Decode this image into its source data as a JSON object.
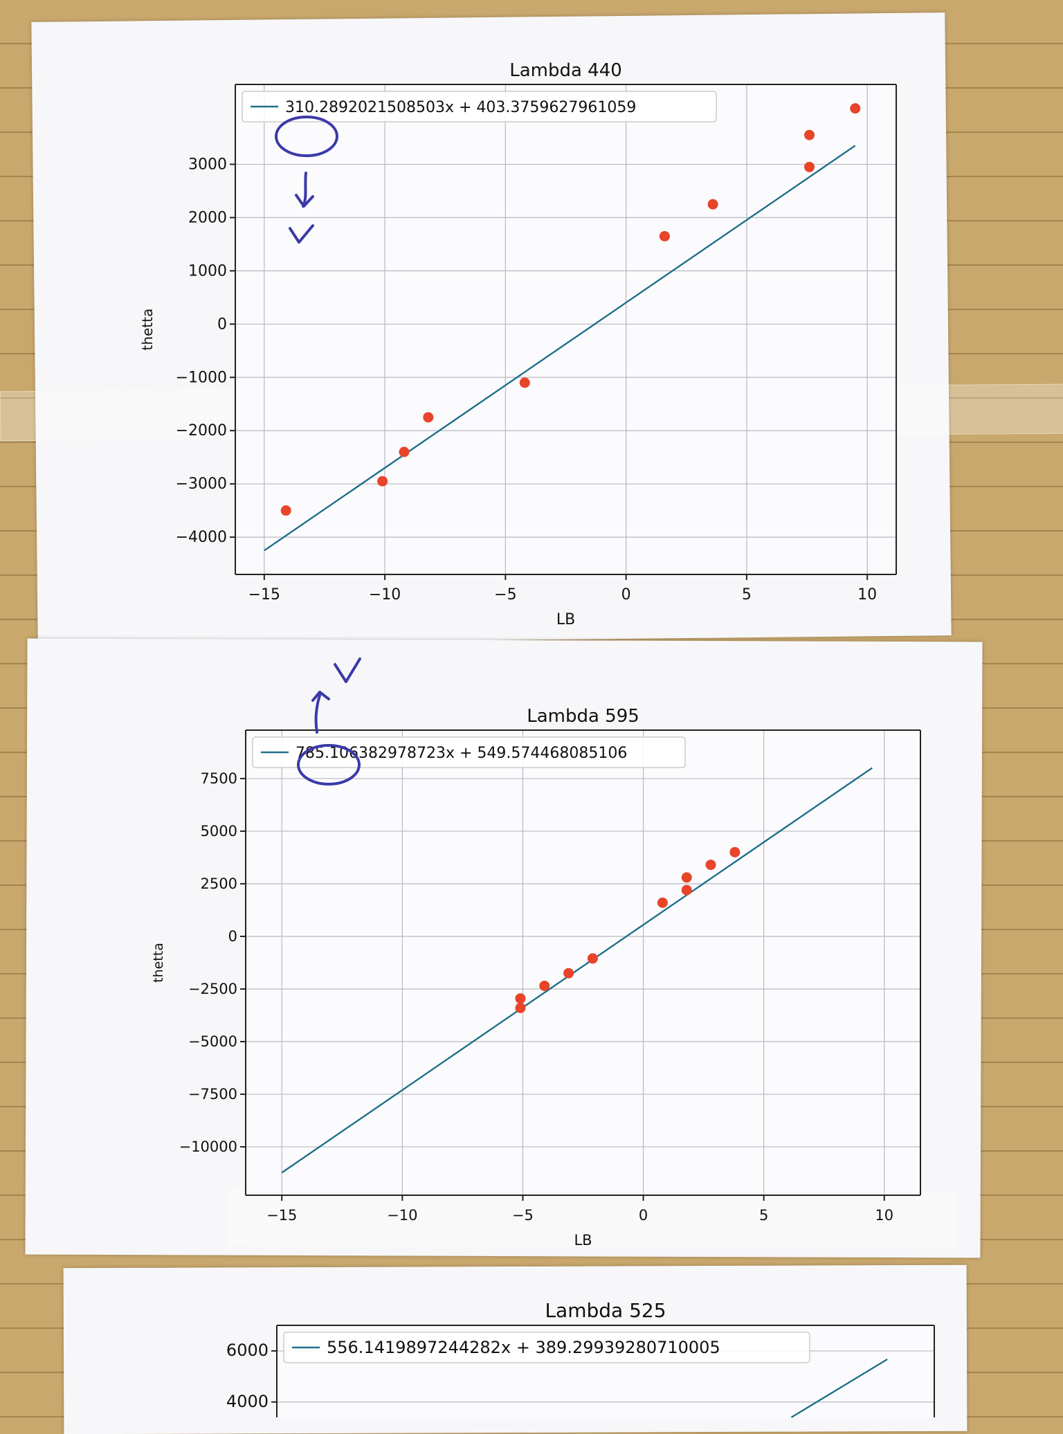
{
  "chart_data": [
    {
      "type": "scatter",
      "title": "Lambda 440",
      "xlabel": "LB",
      "ylabel": "thetta",
      "xlim": [
        -16.2,
        11.2
      ],
      "ylim": [
        -4700,
        4500
      ],
      "xticks": [
        -15,
        -10,
        -5,
        0,
        5,
        10
      ],
      "xtick_labels": [
        "−15",
        "−10",
        "−5",
        "0",
        "5",
        "10"
      ],
      "yticks": [
        -4000,
        -3000,
        -2000,
        -1000,
        0,
        1000,
        2000,
        3000
      ],
      "ytick_labels": [
        "−4000",
        "−3000",
        "−2000",
        "−1000",
        "0",
        "1000",
        "2000",
        "3000"
      ],
      "grid": true,
      "legend_position": "top-left",
      "fit": {
        "slope": 310.2892021508503,
        "intercept": 403.3759627961059,
        "x_range": [
          -15,
          9.5
        ]
      },
      "legend_label": "310.2892021508503x + 403.3759627961059",
      "points": {
        "x": [
          -14.1,
          -10.1,
          -9.2,
          -8.2,
          -4.2,
          1.6,
          3.6,
          7.6,
          7.6,
          9.5
        ],
        "y": [
          -3500,
          -2950,
          -2400,
          -1750,
          -1100,
          1650,
          2250,
          2950,
          3550,
          4050
        ]
      },
      "line_color": "#1f6f8b",
      "point_color": "#e8442a"
    },
    {
      "type": "scatter",
      "title": "Lambda 595",
      "xlabel": "LB",
      "ylabel": "thetta",
      "xlim": [
        -16.5,
        11.5
      ],
      "ylim": [
        -12300,
        9800
      ],
      "xticks": [
        -15,
        -10,
        -5,
        0,
        5,
        10
      ],
      "xtick_labels": [
        "−15",
        "−10",
        "−5",
        "0",
        "5",
        "10"
      ],
      "yticks": [
        -10000,
        -7500,
        -5000,
        -2500,
        0,
        2500,
        5000,
        7500
      ],
      "ytick_labels": [
        "−10000",
        "−7500",
        "−5000",
        "−2500",
        "0",
        "2500",
        "5000",
        "7500"
      ],
      "grid": true,
      "legend_position": "top-left",
      "fit": {
        "slope": 785.106382978723,
        "intercept": 549.574468085106,
        "x_range": [
          -15,
          9.5
        ]
      },
      "legend_label": "785.106382978723x + 549.574468085106",
      "points": {
        "x": [
          -5.1,
          -5.1,
          -4.1,
          -3.1,
          -2.1,
          0.8,
          1.8,
          1.8,
          2.8,
          3.8
        ],
        "y": [
          -3400,
          -2950,
          -2350,
          -1750,
          -1050,
          1600,
          2200,
          2800,
          3400,
          4000
        ]
      },
      "line_color": "#1f6f8b",
      "point_color": "#e8442a"
    },
    {
      "type": "line",
      "title": "Lambda 525",
      "xlabel": "",
      "ylabel": "",
      "xlim": [
        -16.5,
        11.5
      ],
      "ylim": [
        -6000,
        7000
      ],
      "yticks": [
        4000,
        6000
      ],
      "ytick_labels": [
        "4000",
        "6000"
      ],
      "grid": true,
      "legend_position": "top-left",
      "fit": {
        "slope": 556.1419897244282,
        "intercept": 389.29939280710005,
        "x_range": [
          -15,
          9.5
        ]
      },
      "legend_label": "556.1419897244282x + 389.29939280710005",
      "line_color": "#1f6f8b"
    }
  ]
}
